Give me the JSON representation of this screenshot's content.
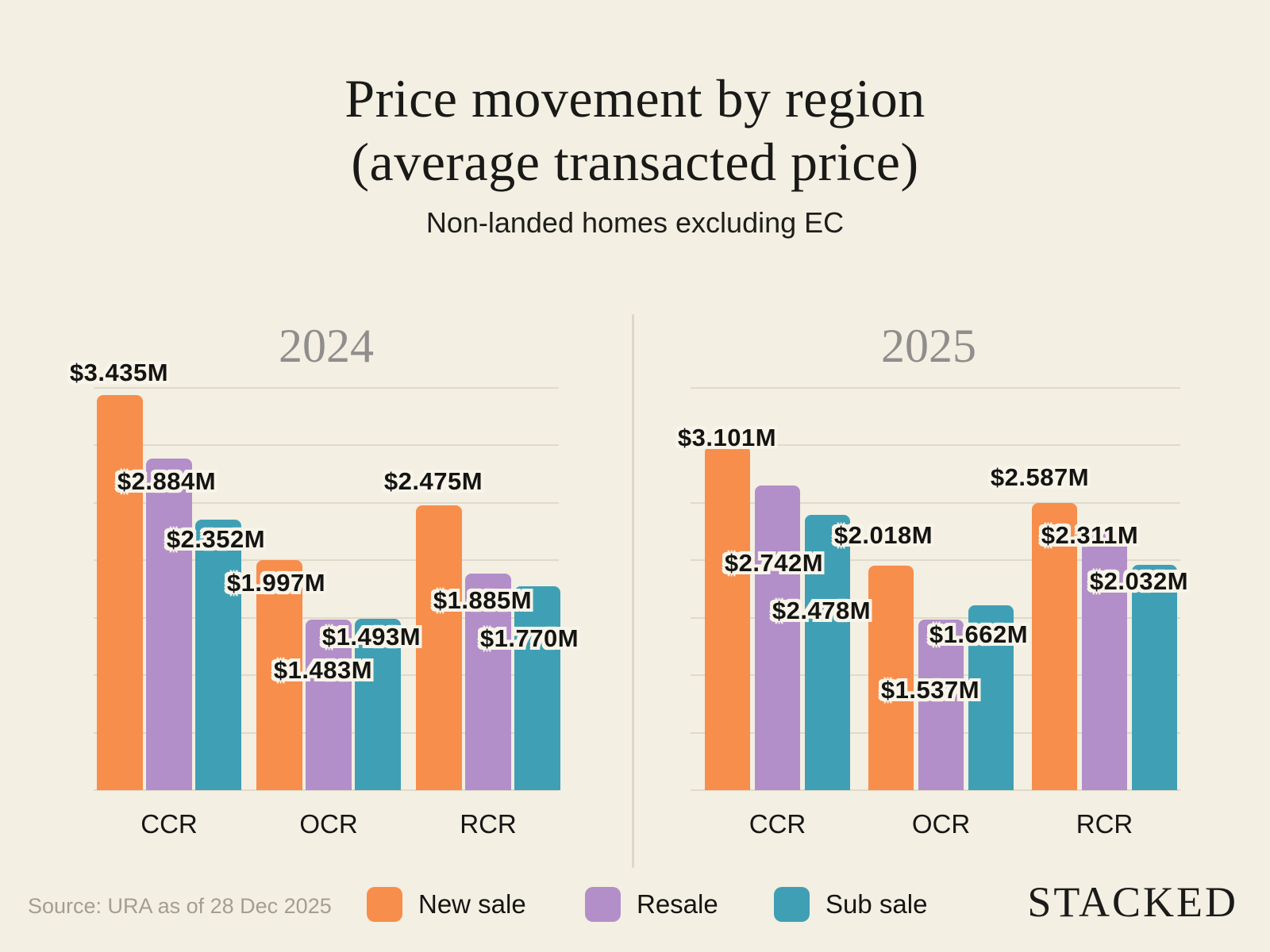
{
  "header": {
    "title_line1": "Price movement by region",
    "title_line2": "(average transacted price)",
    "subtitle": "Non-landed homes excluding EC"
  },
  "footer": {
    "source": "Source: URA as of 28 Dec 2025",
    "brand": "STACKED"
  },
  "legend": [
    {
      "label": "New sale",
      "color": "#F78E4C"
    },
    {
      "label": "Resale",
      "color": "#B28FC9"
    },
    {
      "label": "Sub sale",
      "color": "#3FA0B5"
    }
  ],
  "palette": {
    "background": "#F3EFE2",
    "gridline": "#DFDACA",
    "divider": "#DCD7C7",
    "panel_title_text": "#8F8E8C",
    "text": "#161614",
    "muted_text": "#A39E90",
    "value_label_outline": "#F8F4E9"
  },
  "chart_data": {
    "type": "bar",
    "title": "Price movement by region (average transacted price)",
    "subtitle": "Non-landed homes excluding EC",
    "unit": "S$ million",
    "categories": [
      "CCR",
      "OCR",
      "RCR"
    ],
    "series_names": [
      "New sale",
      "Resale",
      "Sub sale"
    ],
    "ylim": [
      0,
      3.5
    ],
    "gridline_step": 0.5,
    "grid": true,
    "legend_position": "bottom",
    "value_label_format": "$#.###M",
    "panels": [
      {
        "title": "2024",
        "series": [
          {
            "name": "New sale",
            "values": [
              3.435,
              1.997,
              2.475
            ]
          },
          {
            "name": "Resale",
            "values": [
              2.884,
              1.483,
              1.885
            ]
          },
          {
            "name": "Sub sale",
            "values": [
              2.352,
              1.493,
              1.77
            ]
          }
        ]
      },
      {
        "title": "2025",
        "series": [
          {
            "name": "New sale",
            "values": [
              3.101,
              2.018,
              2.587
            ]
          },
          {
            "name": "Resale",
            "values": [
              2.742,
              1.537,
              2.311
            ]
          },
          {
            "name": "Sub sale",
            "values": [
              2.478,
              1.662,
              2.032
            ]
          }
        ]
      }
    ]
  }
}
